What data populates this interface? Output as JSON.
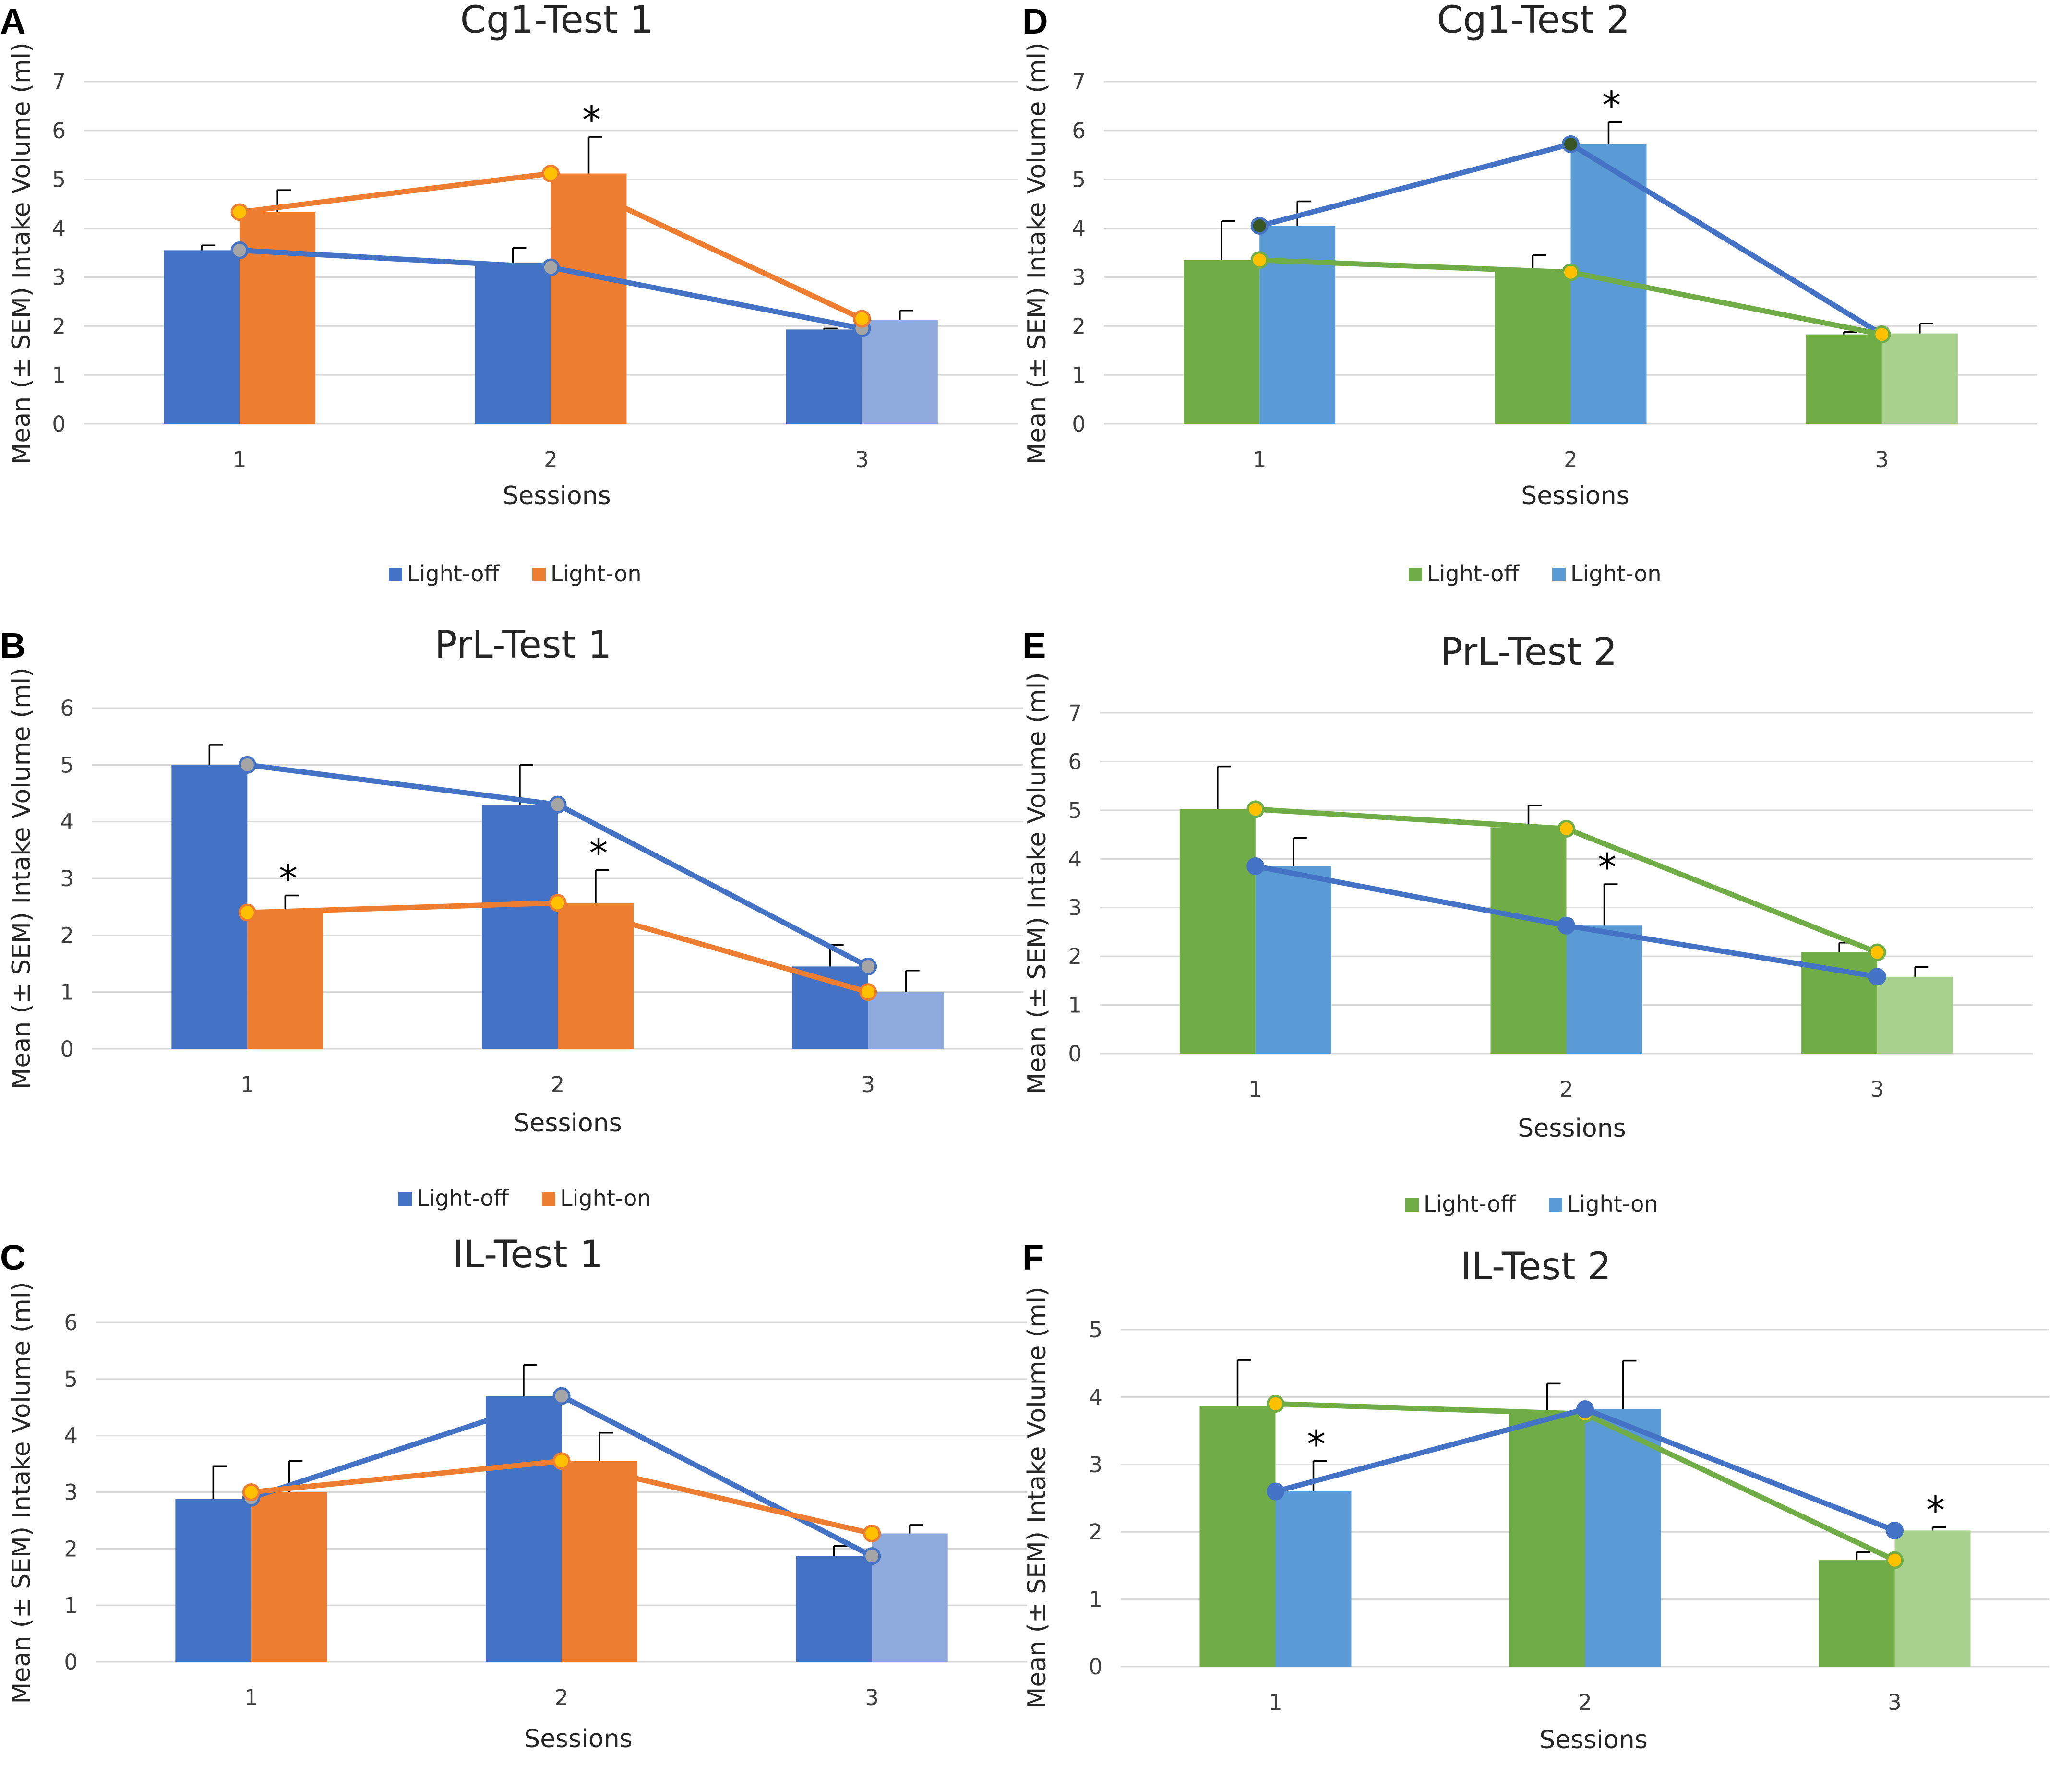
{
  "figure": {
    "colors": {
      "blue_dark": "#4472c4",
      "blue_dark_light": "#8faadc",
      "orange": "#ed7d31",
      "green": "#70ad47",
      "green_light": "#a9d18e",
      "blue_mid": "#5b9bd5",
      "marker_gray": "#a5a5a5",
      "marker_yellow": "#ffc000",
      "marker_darkgreen": "#375623"
    }
  },
  "chart_data": [
    {
      "panel": "A",
      "type": "bar",
      "title": "Cg1-Test 1",
      "xlabel": "Sessions",
      "ylabel": "Mean (± SEM) Intake Volume (ml)",
      "categories": [
        "1",
        "2",
        "3"
      ],
      "ylim": [
        0,
        7
      ],
      "yticks": [
        "0",
        "1",
        "2",
        "3",
        "4",
        "5",
        "6",
        "7"
      ],
      "series": [
        {
          "name": "Light-off",
          "values": [
            3.55,
            3.3,
            1.93
          ],
          "errors": [
            0.1,
            0.3,
            0.02
          ],
          "color": "#4472c4",
          "last_color": "#4472c4"
        },
        {
          "name": "Light-on",
          "values": [
            4.33,
            5.12,
            2.12
          ],
          "errors": [
            0.45,
            0.75,
            0.2
          ],
          "color": "#ed7d31",
          "last_color": "#8faadc"
        }
      ],
      "lines": [
        {
          "name": "Light-off",
          "values": [
            3.55,
            3.2,
            1.95
          ],
          "color": "#4472c4",
          "marker": "#a5a5a5"
        },
        {
          "name": "Light-on",
          "values": [
            4.33,
            5.12,
            2.15
          ],
          "color": "#ed7d31",
          "marker": "#ffc000"
        }
      ],
      "significance": [
        {
          "category": "2",
          "label": "*"
        }
      ],
      "legend": [
        {
          "label": "Light-off",
          "color": "#4472c4"
        },
        {
          "label": "Light-on",
          "color": "#ed7d31"
        }
      ]
    },
    {
      "panel": "B",
      "type": "bar",
      "title": "PrL-Test 1",
      "xlabel": "Sessions",
      "ylabel": "Mean (± SEM) Intake Volume (ml)",
      "categories": [
        "1",
        "2",
        "3"
      ],
      "ylim": [
        0,
        6
      ],
      "yticks": [
        "0",
        "1",
        "2",
        "3",
        "4",
        "5",
        "6"
      ],
      "series": [
        {
          "name": "Light-off",
          "values": [
            5.0,
            4.3,
            1.45
          ],
          "errors": [
            0.35,
            0.7,
            0.38
          ],
          "color": "#4472c4",
          "last_color": "#4472c4"
        },
        {
          "name": "Light-on",
          "values": [
            2.45,
            2.57,
            1.0
          ],
          "errors": [
            0.25,
            0.58,
            0.38
          ],
          "color": "#ed7d31",
          "last_color": "#8faadc"
        }
      ],
      "lines": [
        {
          "name": "Light-off",
          "values": [
            5.0,
            4.3,
            1.45
          ],
          "color": "#4472c4",
          "marker": "#a5a5a5"
        },
        {
          "name": "Light-on",
          "values": [
            2.4,
            2.57,
            1.0
          ],
          "color": "#ed7d31",
          "marker": "#ffc000"
        }
      ],
      "significance": [
        {
          "category": "1",
          "label": "*"
        },
        {
          "category": "2",
          "label": "*"
        }
      ],
      "legend": [
        {
          "label": "Light-off",
          "color": "#4472c4"
        },
        {
          "label": "Light-on",
          "color": "#ed7d31"
        }
      ]
    },
    {
      "panel": "C",
      "type": "bar",
      "title": "IL-Test 1",
      "xlabel": "Sessions",
      "ylabel": "Mean (± SEM) Intake Volume (ml)",
      "categories": [
        "1",
        "2",
        "3"
      ],
      "ylim": [
        0,
        6
      ],
      "yticks": [
        "0",
        "1",
        "2",
        "3",
        "4",
        "5",
        "6"
      ],
      "series": [
        {
          "name": "Light-off",
          "values": [
            2.88,
            4.7,
            1.87
          ],
          "errors": [
            0.58,
            0.55,
            0.18
          ],
          "color": "#4472c4",
          "last_color": "#4472c4"
        },
        {
          "name": "Light-on",
          "values": [
            3.0,
            3.55,
            2.27
          ],
          "errors": [
            0.55,
            0.5,
            0.15
          ],
          "color": "#ed7d31",
          "last_color": "#8faadc"
        }
      ],
      "lines": [
        {
          "name": "Light-off",
          "values": [
            2.9,
            4.7,
            1.87
          ],
          "color": "#4472c4",
          "marker": "#a5a5a5"
        },
        {
          "name": "Light-on",
          "values": [
            3.0,
            3.55,
            2.27
          ],
          "color": "#ed7d31",
          "marker": "#ffc000"
        }
      ],
      "significance": [],
      "legend": []
    },
    {
      "panel": "D",
      "type": "bar",
      "title": "Cg1-Test 2",
      "xlabel": "Sessions",
      "ylabel": "Mean (± SEM) Intake Volume (ml)",
      "categories": [
        "1",
        "2",
        "3"
      ],
      "ylim": [
        0,
        7
      ],
      "yticks": [
        "0",
        "1",
        "2",
        "3",
        "4",
        "5",
        "6",
        "7"
      ],
      "series": [
        {
          "name": "Light-off",
          "values": [
            3.35,
            3.15,
            1.83
          ],
          "errors": [
            0.8,
            0.3,
            0.05
          ],
          "color": "#70ad47",
          "last_color": "#70ad47"
        },
        {
          "name": "Light-on",
          "values": [
            4.05,
            5.72,
            1.85
          ],
          "errors": [
            0.5,
            0.45,
            0.2
          ],
          "color": "#5b9bd5",
          "last_color": "#a9d18e"
        }
      ],
      "lines": [
        {
          "name": "Light-on",
          "values": [
            4.05,
            5.72,
            1.83
          ],
          "color": "#4472c4",
          "marker": "#375623"
        },
        {
          "name": "Light-off",
          "values": [
            3.35,
            3.1,
            1.83
          ],
          "color": "#70ad47",
          "marker": "#ffc000"
        }
      ],
      "significance": [
        {
          "category": "2",
          "label": "*"
        }
      ],
      "legend": [
        {
          "label": "Light-off",
          "color": "#70ad47"
        },
        {
          "label": "Light-on",
          "color": "#5b9bd5"
        }
      ]
    },
    {
      "panel": "E",
      "type": "bar",
      "title": "PrL-Test 2",
      "xlabel": "Sessions",
      "ylabel": "Mean (± SEM) Intake Volume (ml)",
      "categories": [
        "1",
        "2",
        "3"
      ],
      "ylim": [
        0,
        7
      ],
      "yticks": [
        "0",
        "1",
        "2",
        "3",
        "4",
        "5",
        "6",
        "7"
      ],
      "series": [
        {
          "name": "Light-off",
          "values": [
            5.02,
            4.65,
            2.08
          ],
          "errors": [
            0.88,
            0.45,
            0.2
          ],
          "color": "#70ad47",
          "last_color": "#70ad47"
        },
        {
          "name": "Light-on",
          "values": [
            3.85,
            2.63,
            1.58
          ],
          "errors": [
            0.58,
            0.85,
            0.2
          ],
          "color": "#5b9bd5",
          "last_color": "#a9d18e"
        }
      ],
      "lines": [
        {
          "name": "Light-off",
          "values": [
            5.02,
            4.62,
            2.08
          ],
          "color": "#70ad47",
          "marker": "#ffc000"
        },
        {
          "name": "Light-on",
          "values": [
            3.85,
            2.63,
            1.58
          ],
          "color": "#4472c4",
          "marker": "#4472c4"
        }
      ],
      "significance": [
        {
          "category": "2",
          "label": "*"
        }
      ],
      "legend": [
        {
          "label": "Light-off",
          "color": "#70ad47"
        },
        {
          "label": "Light-on",
          "color": "#5b9bd5"
        }
      ]
    },
    {
      "panel": "F",
      "type": "bar",
      "title": "IL-Test 2",
      "xlabel": "Sessions",
      "ylabel": "Mean (± SEM) Intake Volume (ml)",
      "categories": [
        "1",
        "2",
        "3"
      ],
      "ylim": [
        0,
        5
      ],
      "yticks": [
        "0",
        "1",
        "2",
        "3",
        "4",
        "5"
      ],
      "series": [
        {
          "name": "Light-off",
          "values": [
            3.87,
            3.75,
            1.58
          ],
          "errors": [
            0.68,
            0.45,
            0.12
          ],
          "color": "#70ad47",
          "last_color": "#70ad47"
        },
        {
          "name": "Light-on",
          "values": [
            2.6,
            3.82,
            2.02
          ],
          "errors": [
            0.45,
            0.72,
            0.05
          ],
          "color": "#5b9bd5",
          "last_color": "#a9d18e"
        }
      ],
      "lines": [
        {
          "name": "Light-off",
          "values": [
            3.9,
            3.75,
            1.58
          ],
          "color": "#70ad47",
          "marker": "#ffc000"
        },
        {
          "name": "Light-on",
          "values": [
            2.6,
            3.82,
            2.02
          ],
          "color": "#4472c4",
          "marker": "#4472c4"
        }
      ],
      "significance": [
        {
          "category": "1",
          "label": "*"
        },
        {
          "category": "3",
          "label": "*"
        }
      ],
      "legend": []
    }
  ]
}
